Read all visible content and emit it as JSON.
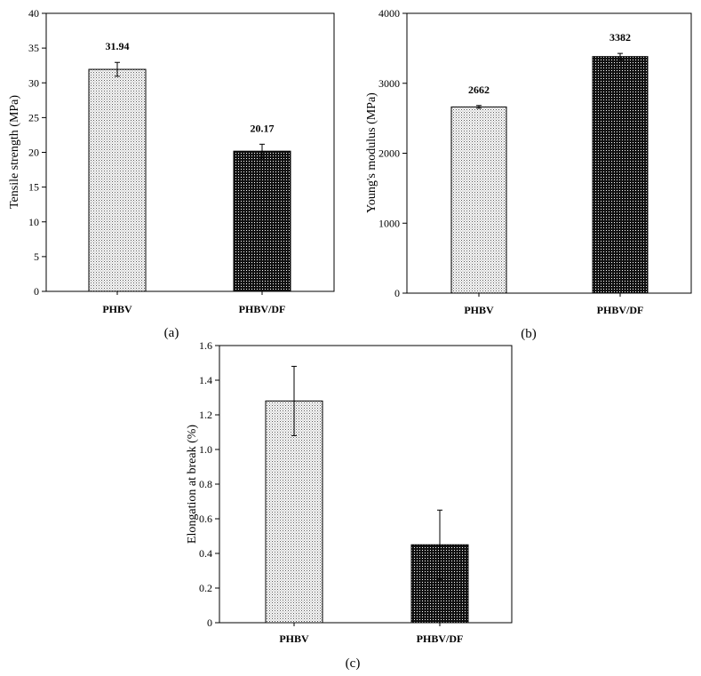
{
  "colors": {
    "ink": "#000000",
    "background": "#ffffff",
    "light_fill": "#d9d9d9",
    "dark_fill": "#111111"
  },
  "chart_data": [
    {
      "id": "a",
      "type": "bar",
      "panel_label": "(a)",
      "categories": [
        "PHBV",
        "PHBV/DF"
      ],
      "values": [
        31.94,
        20.17
      ],
      "errors": [
        1.0,
        1.0
      ],
      "value_labels": [
        "31.94",
        "20.17"
      ],
      "ylabel": "Tensile strength (MPa)",
      "ylim": [
        0,
        40
      ],
      "yticks": [
        0,
        5,
        10,
        15,
        20,
        25,
        30,
        35,
        40
      ],
      "ytick_labels": [
        "0",
        "5",
        "10",
        "15",
        "20",
        "25",
        "30",
        "35",
        "40"
      ],
      "fills": [
        "light",
        "dark"
      ]
    },
    {
      "id": "b",
      "type": "bar",
      "panel_label": "(b)",
      "categories": [
        "PHBV",
        "PHBV/DF"
      ],
      "values": [
        2662,
        3382
      ],
      "errors": [
        20,
        45
      ],
      "value_labels": [
        "2662",
        "3382"
      ],
      "ylabel": "Young's modulus (MPa)",
      "ylim": [
        0,
        4000
      ],
      "yticks": [
        0,
        1000,
        2000,
        3000,
        4000
      ],
      "ytick_labels": [
        "0",
        "1000",
        "2000",
        "3000",
        "4000"
      ],
      "fills": [
        "light",
        "dark"
      ]
    },
    {
      "id": "c",
      "type": "bar",
      "panel_label": "(c)",
      "categories": [
        "PHBV",
        "PHBV/DF"
      ],
      "values": [
        1.28,
        0.45
      ],
      "errors": [
        0.2,
        0.2
      ],
      "value_labels": [],
      "ylabel": "Elongation at break (%)",
      "ylim": [
        0,
        1.6
      ],
      "yticks": [
        0,
        0.2,
        0.4,
        0.6,
        0.8,
        1.0,
        1.2,
        1.4,
        1.6
      ],
      "ytick_labels": [
        "0",
        "0.2",
        "0.4",
        "0.6",
        "0.8",
        "1.0",
        "1.2",
        "1.4",
        "1.6"
      ],
      "fills": [
        "light",
        "dark"
      ]
    }
  ]
}
